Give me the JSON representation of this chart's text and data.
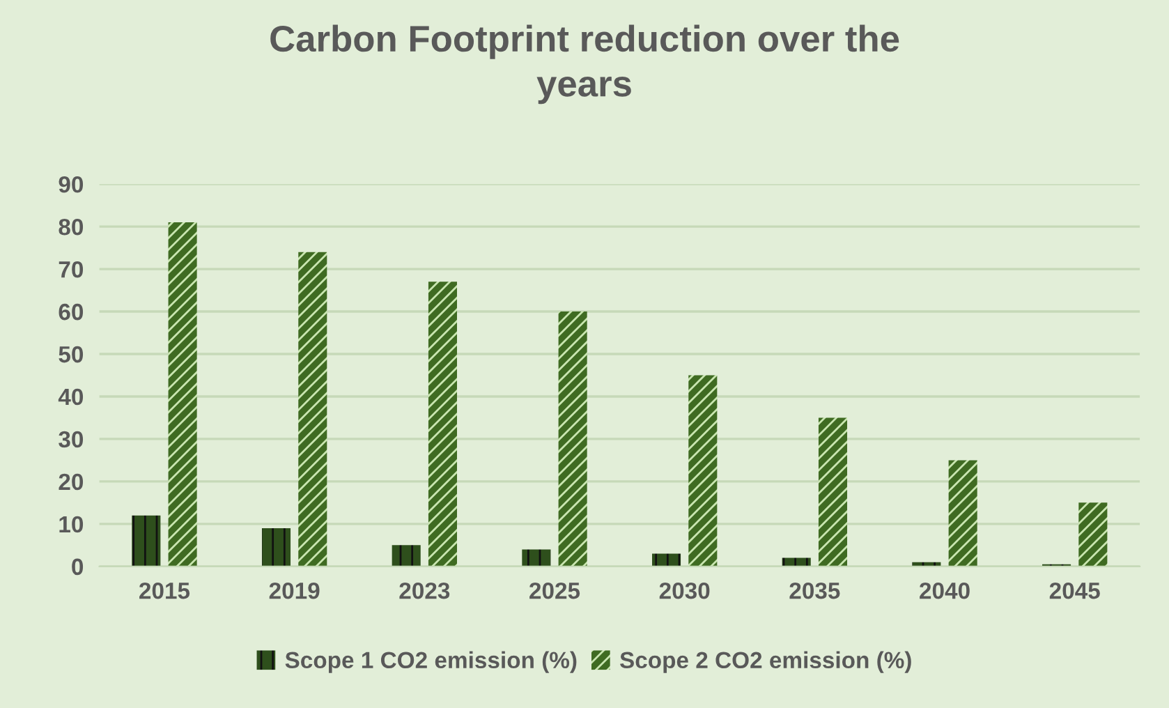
{
  "chart_data": {
    "type": "bar",
    "title": "Carbon Footprint reduction over the\nyears",
    "categories": [
      "2015",
      "2019",
      "2023",
      "2025",
      "2030",
      "2035",
      "2040",
      "2045"
    ],
    "series": [
      {
        "name": "Scope 1 CO2 emission (%)",
        "color": "#2e4f1c",
        "values": [
          12,
          9,
          5,
          4,
          3,
          2,
          1,
          0.5
        ]
      },
      {
        "name": "Scope 2 CO2 emission (%)",
        "color": "#3f6b22",
        "values": [
          81,
          74,
          67,
          60,
          45,
          35,
          25,
          15
        ]
      }
    ],
    "ylim": [
      0,
      90
    ],
    "yticks": [
      0,
      10,
      20,
      30,
      40,
      50,
      60,
      70,
      80,
      90
    ],
    "grid": "y",
    "legend": "bottom"
  }
}
